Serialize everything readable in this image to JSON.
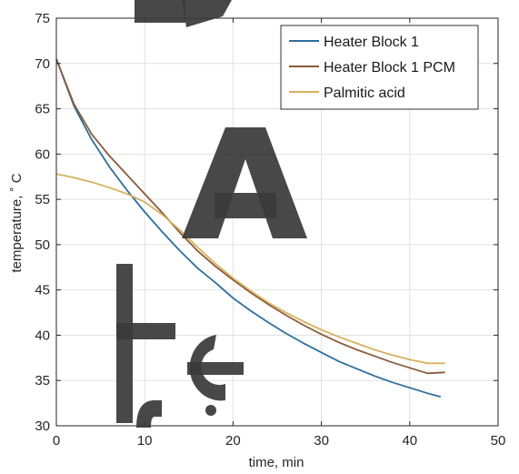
{
  "chart_data": {
    "type": "line",
    "xlabel": "time, min",
    "ylabel": "temperature, ˚ C",
    "xlim": [
      0,
      50
    ],
    "ylim": [
      30,
      75
    ],
    "xticks": [
      0,
      10,
      20,
      30,
      40,
      50
    ],
    "yticks": [
      30,
      35,
      40,
      45,
      50,
      55,
      60,
      65,
      70,
      75
    ],
    "grid": true,
    "legend_position": "top-right",
    "series": [
      {
        "name": "Heater Block 1",
        "color": "#2f6e9e",
        "x": [
          0,
          2,
          4,
          6,
          8,
          10,
          12,
          14,
          16,
          18,
          20,
          22,
          24,
          26,
          28,
          30,
          32,
          34,
          36,
          38,
          40,
          42,
          43.5
        ],
        "y": [
          70.5,
          65.3,
          61.6,
          58.6,
          56.0,
          53.6,
          51.4,
          49.3,
          47.4,
          45.8,
          44.1,
          42.7,
          41.4,
          40.2,
          39.1,
          38.1,
          37.1,
          36.3,
          35.5,
          34.8,
          34.2,
          33.6,
          33.2
        ]
      },
      {
        "name": "Heater Block 1 PCM",
        "color": "#8b5a3c",
        "x": [
          0,
          2,
          4,
          6,
          8,
          10,
          12,
          14,
          16,
          18,
          20,
          22,
          24,
          26,
          28,
          30,
          32,
          34,
          36,
          38,
          40,
          42,
          44
        ],
        "y": [
          70.5,
          65.5,
          62.2,
          59.8,
          57.7,
          55.6,
          53.5,
          51.3,
          49.3,
          47.6,
          46.1,
          44.7,
          43.4,
          42.2,
          41.1,
          40.1,
          39.2,
          38.4,
          37.7,
          37.0,
          36.4,
          35.8,
          35.9
        ]
      },
      {
        "name": "Palmitic acid",
        "color": "#d6b25e",
        "x": [
          0,
          2,
          4,
          6,
          8,
          10,
          12,
          14,
          16,
          18,
          20,
          22,
          24,
          26,
          28,
          30,
          32,
          34,
          36,
          38,
          40,
          42,
          44
        ],
        "y": [
          57.8,
          57.4,
          56.9,
          56.3,
          55.6,
          54.7,
          53.3,
          51.6,
          49.7,
          47.9,
          46.3,
          44.9,
          43.6,
          42.5,
          41.5,
          40.6,
          39.8,
          39.1,
          38.4,
          37.8,
          37.3,
          36.9,
          36.9
        ]
      }
    ]
  }
}
